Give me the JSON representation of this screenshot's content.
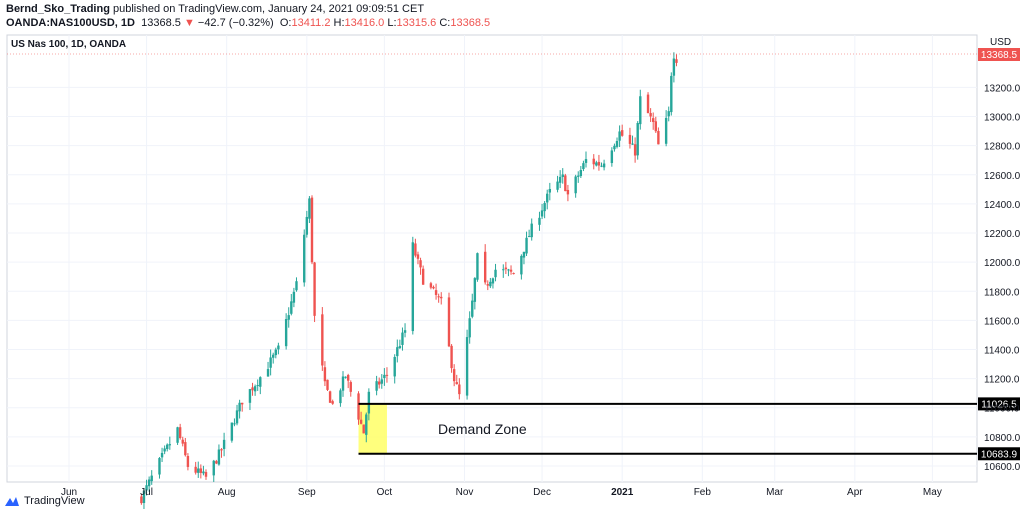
{
  "header": {
    "author": "Bernd_Sko_Trading",
    "published_text": " published on TradingView.com, January 24, 2021 09:09:51 CET",
    "symbol": "OANDA:NAS100USD, 1D",
    "last": "13368.5",
    "arrow": "▼",
    "change": "−42.7 (−0.32%)",
    "o_label": "O:",
    "o_val": "13411.2",
    "h_label": "H:",
    "h_val": "13416.0",
    "l_label": "L:",
    "l_val": "13315.6",
    "c_label": "C:",
    "c_val": "13368.5"
  },
  "footer": {
    "brand": "TradingView",
    "logo_icon": "tradingview-logo-icon"
  },
  "colors": {
    "up": "#26a69a",
    "down": "#ef5350",
    "zone": "#ffff66",
    "level": "#000000"
  },
  "chart_data": {
    "type": "candlestick",
    "title": "US Nas 100, 1D, OANDA",
    "currency": "USD",
    "last_price_label": "13368.5",
    "ylim": [
      10490,
      13560
    ],
    "y_ticks": [
      10600,
      10800,
      11000,
      11200,
      11400,
      11600,
      11800,
      12000,
      12200,
      12400,
      12600,
      12800,
      13000,
      13200
    ],
    "y_tick_labels": [
      "10600.0",
      "10800.0",
      "11000.0",
      "11200.0",
      "11400.0",
      "11600.0",
      "11800.0",
      "12000.0",
      "12200.0",
      "12400.0",
      "12600.0",
      "12800.0",
      "13000.0",
      "13200.0"
    ],
    "x_labels": [
      {
        "label": "Jun",
        "date": "2020-06-01",
        "bold": false
      },
      {
        "label": "Jul",
        "date": "2020-07-01",
        "bold": false
      },
      {
        "label": "Aug",
        "date": "2020-08-01",
        "bold": false
      },
      {
        "label": "Sep",
        "date": "2020-09-01",
        "bold": false
      },
      {
        "label": "Oct",
        "date": "2020-10-01",
        "bold": false
      },
      {
        "label": "Nov",
        "date": "2020-11-01",
        "bold": false
      },
      {
        "label": "Dec",
        "date": "2020-12-01",
        "bold": false
      },
      {
        "label": "2021",
        "date": "2021-01-01",
        "bold": true
      },
      {
        "label": "Feb",
        "date": "2021-02-01",
        "bold": false
      },
      {
        "label": "Mar",
        "date": "2021-03-01",
        "bold": false
      },
      {
        "label": "Apr",
        "date": "2021-04-01",
        "bold": false
      },
      {
        "label": "May",
        "date": "2021-05-01",
        "bold": false
      }
    ],
    "levels": [
      {
        "value": 11026.5,
        "label": "11026.5"
      },
      {
        "value": 10683.9,
        "label": "10683.9"
      }
    ],
    "demand_zone": {
      "label": "Demand Zone",
      "start_date": "2020-09-21",
      "end_date": "2020-10-02",
      "low": 10683.9,
      "high": 11026.5
    },
    "anchors": [
      [
        "2020-06-29",
        10380
      ],
      [
        "2020-07-07",
        10660
      ],
      [
        "2020-07-13",
        10850
      ],
      [
        "2020-07-17",
        10600
      ],
      [
        "2020-07-24",
        10520
      ],
      [
        "2020-07-30",
        10710
      ],
      [
        "2020-08-07",
        11050
      ],
      [
        "2020-08-14",
        11210
      ],
      [
        "2020-08-21",
        11400
      ],
      [
        "2020-08-28",
        11850
      ],
      [
        "2020-09-02",
        12420
      ],
      [
        "2020-09-04",
        11620
      ],
      [
        "2020-09-08",
        11150
      ],
      [
        "2020-09-11",
        11020
      ],
      [
        "2020-09-16",
        11220
      ],
      [
        "2020-09-23",
        10830
      ],
      [
        "2020-09-25",
        11090
      ],
      [
        "2020-10-02",
        11230
      ],
      [
        "2020-10-09",
        11530
      ],
      [
        "2020-10-12",
        12110
      ],
      [
        "2020-10-16",
        11880
      ],
      [
        "2020-10-23",
        11720
      ],
      [
        "2020-10-28",
        11200
      ],
      [
        "2020-10-30",
        11080
      ],
      [
        "2020-11-04",
        11720
      ],
      [
        "2020-11-06",
        12030
      ],
      [
        "2020-11-09",
        11830
      ],
      [
        "2020-11-13",
        11950
      ],
      [
        "2020-11-20",
        11920
      ],
      [
        "2020-11-27",
        12230
      ],
      [
        "2020-12-04",
        12480
      ],
      [
        "2020-12-09",
        12580
      ],
      [
        "2020-12-11",
        12460
      ],
      [
        "2020-12-18",
        12700
      ],
      [
        "2020-12-24",
        12670
      ],
      [
        "2020-12-31",
        12890
      ],
      [
        "2021-01-06",
        12760
      ],
      [
        "2021-01-08",
        13120
      ],
      [
        "2021-01-13",
        12950
      ],
      [
        "2021-01-15",
        12800
      ],
      [
        "2021-01-19",
        13020
      ],
      [
        "2021-01-20",
        13300
      ],
      [
        "2021-01-21",
        13430
      ],
      [
        "2021-01-22",
        13368.5
      ]
    ]
  }
}
